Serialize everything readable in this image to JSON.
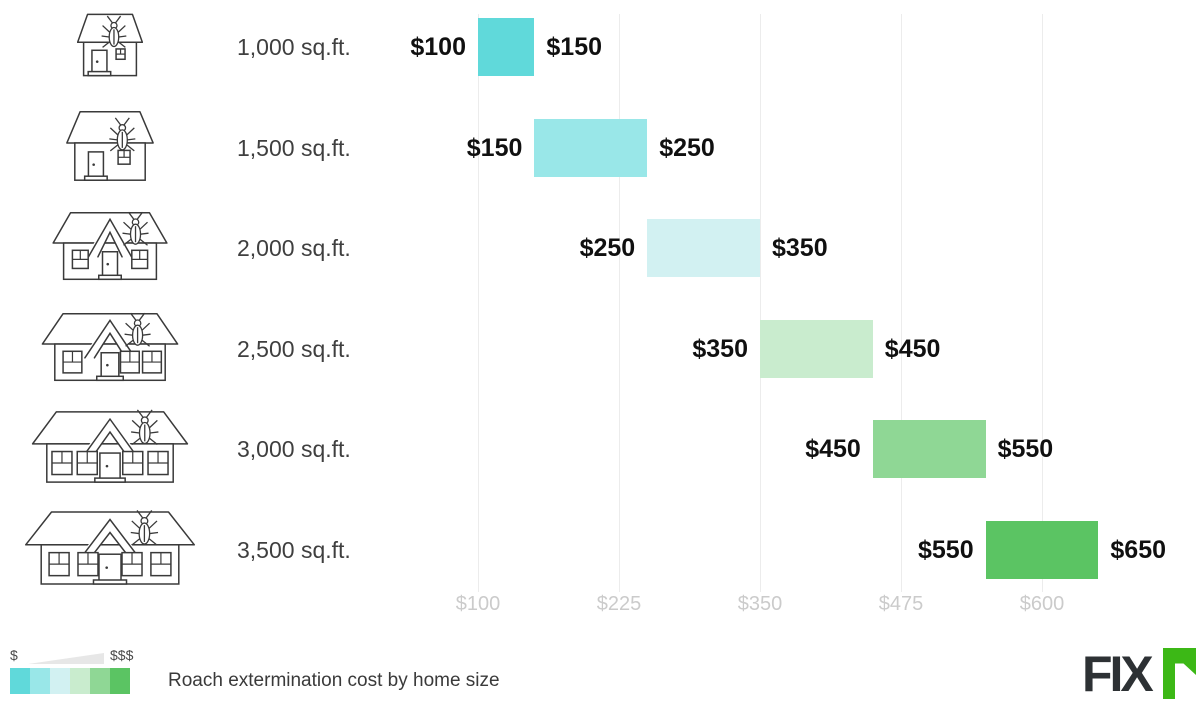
{
  "chart_data": {
    "type": "bar",
    "variant": "horizontal-range-steps",
    "title": "Roach extermination cost by home size",
    "categories": [
      "1,000 sq.ft.",
      "1,500 sq.ft.",
      "2,000 sq.ft.",
      "2,500 sq.ft.",
      "3,000 sq.ft.",
      "3,500 sq.ft."
    ],
    "rows": [
      {
        "size_label": "1,000 sq.ft.",
        "icon": "house-1000-sqft-roach-icon",
        "min": 100,
        "max": 150,
        "min_label": "$100",
        "max_label": "$150",
        "color": "#60d9da"
      },
      {
        "size_label": "1,500 sq.ft.",
        "icon": "house-1500-sqft-roach-icon",
        "min": 150,
        "max": 250,
        "min_label": "$150",
        "max_label": "$250",
        "color": "#99e7e8"
      },
      {
        "size_label": "2,000 sq.ft.",
        "icon": "house-2000-sqft-roach-icon",
        "min": 250,
        "max": 350,
        "min_label": "$250",
        "max_label": "$350",
        "color": "#d2f1f2"
      },
      {
        "size_label": "2,500 sq.ft.",
        "icon": "house-2500-sqft-roach-icon",
        "min": 350,
        "max": 450,
        "min_label": "$350",
        "max_label": "$450",
        "color": "#c9ecce"
      },
      {
        "size_label": "3,000 sq.ft.",
        "icon": "house-3000-sqft-roach-icon",
        "min": 450,
        "max": 550,
        "min_label": "$450",
        "max_label": "$550",
        "color": "#8fd795"
      },
      {
        "size_label": "3,500 sq.ft.",
        "icon": "house-3500-sqft-roach-icon",
        "min": 550,
        "max": 650,
        "min_label": "$550",
        "max_label": "$650",
        "color": "#5bc463"
      }
    ],
    "x_axis": {
      "range": [
        100,
        650
      ],
      "gridlines": true,
      "ticks": [
        {
          "label": "$100",
          "value": 100
        },
        {
          "label": "$225",
          "value": 225
        },
        {
          "label": "$350",
          "value": 350
        },
        {
          "label": "$475",
          "value": 475
        },
        {
          "label": "$600",
          "value": 600
        }
      ]
    },
    "legend_position": "bottom-left"
  },
  "legend": {
    "low_label": "$",
    "high_label": "$$$",
    "wedge_color": "#e7e7e7",
    "swatch_colors": [
      "#60d9da",
      "#99e7e8",
      "#d2f1f2",
      "#c9ecce",
      "#8fd795",
      "#5bc463"
    ]
  },
  "caption": "Roach extermination cost by home size",
  "logo": {
    "brand": "Fixr",
    "text": "FIX",
    "accent_text": "r",
    "dark_color": "#2d3134",
    "accent_color": "#3cb816"
  }
}
